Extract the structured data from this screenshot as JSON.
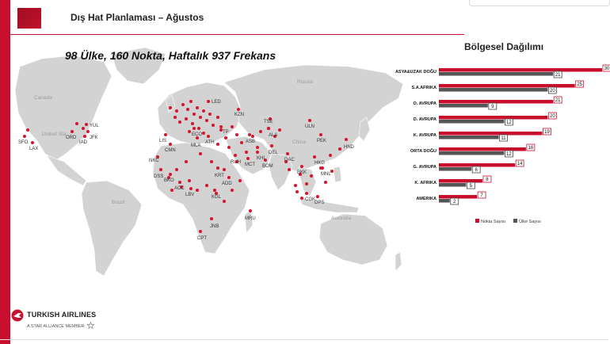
{
  "header": {
    "title": "Dış Hat Planlaması – Ağustos"
  },
  "map": {
    "headline": "98 Ülke, 160 Nokta, Haftalık 937 Frekans",
    "regions": [
      "Canada",
      "United Sta",
      "Russia",
      "China",
      "Brazil",
      "Australia"
    ],
    "cities": [
      "YUL",
      "ORD",
      "JFK",
      "IAD",
      "SFO",
      "LAX",
      "LED",
      "KZN",
      "TSE",
      "ULN",
      "PEK",
      "HND",
      "ALA",
      "ASB",
      "DEL",
      "KHI",
      "BOM",
      "DAC",
      "HKG",
      "BKK",
      "MNL",
      "CGK",
      "DPS",
      "LIS",
      "CMN",
      "MLA",
      "ATH",
      "TP",
      "ECO",
      "RUH",
      "MCT",
      "NKC",
      "DSS",
      "BKO",
      "ACC",
      "LBV",
      "KRT",
      "ADD",
      "KGL",
      "MRU",
      "JNB",
      "CPT"
    ]
  },
  "regional": {
    "title": "Bölgesel Dağılımı",
    "legend": {
      "nokta": "Nokta Sayısı",
      "ulke": "Ülke Sayısı"
    }
  },
  "chart_data": {
    "type": "bar",
    "title": "Bölgesel Dağılımı",
    "categories": [
      "ASYA&UZAK DOĞU",
      "S.A.AFRIKA",
      "O. AVRUPA",
      "D. AVRUPA",
      "K. AVRUPA",
      "ORTA DOĞU",
      "G. AVRUPA",
      "K. AFRIKA",
      "AMERIKA"
    ],
    "series": [
      {
        "name": "Nokta Sayısı",
        "values": [
          30,
          25,
          21,
          20,
          19,
          16,
          14,
          8,
          7
        ]
      },
      {
        "name": "Ülke Sayısı",
        "values": [
          21,
          20,
          9,
          12,
          11,
          12,
          6,
          5,
          2
        ]
      }
    ],
    "xlim": [
      0,
      30
    ],
    "legend": "bottom",
    "grid": false
  },
  "colors": {
    "brand_red": "#c8102e",
    "ulke_gray": "#555555",
    "land": "#cfcfcf"
  },
  "footer": {
    "brand": "TURKISH AIRLINES",
    "tagline": "A STAR ALLIANCE MEMBER",
    "star_icon": "star-alliance-icon"
  }
}
